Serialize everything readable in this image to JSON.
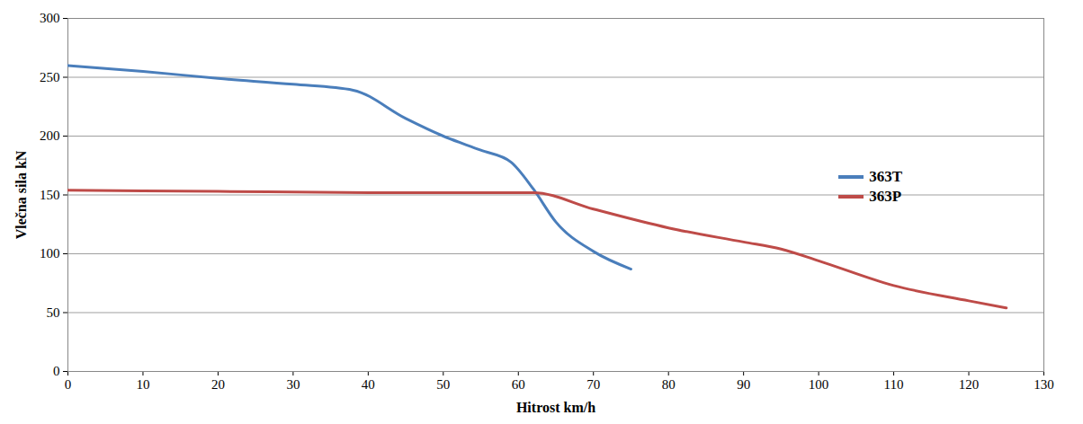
{
  "chart_data": {
    "type": "line",
    "xlabel": "Hitrost km/h",
    "ylabel": "Vlečna sila kN",
    "series": [
      {
        "name": "363T",
        "color": "#4a7ebb",
        "x": [
          0,
          10,
          20,
          30,
          38,
          45,
          50,
          55,
          59,
          62,
          65,
          70,
          75
        ],
        "values": [
          260,
          255,
          249,
          244,
          239,
          215,
          200,
          188,
          178,
          155,
          127,
          102,
          87
        ]
      },
      {
        "name": "363P",
        "color": "#be4b48",
        "x": [
          0,
          20,
          40,
          62,
          70,
          80,
          90,
          95,
          100,
          110,
          120,
          125
        ],
        "values": [
          154,
          153,
          152,
          152,
          138,
          122,
          110,
          104,
          94,
          73,
          60,
          54
        ]
      }
    ],
    "xlim": [
      0,
      130
    ],
    "xticks": [
      0,
      10,
      20,
      30,
      40,
      50,
      60,
      70,
      80,
      90,
      100,
      110,
      120,
      130
    ],
    "ylim": [
      0,
      300
    ],
    "yticks": [
      0,
      50,
      100,
      150,
      200,
      250,
      300
    ],
    "grid": true,
    "legend": "right"
  }
}
